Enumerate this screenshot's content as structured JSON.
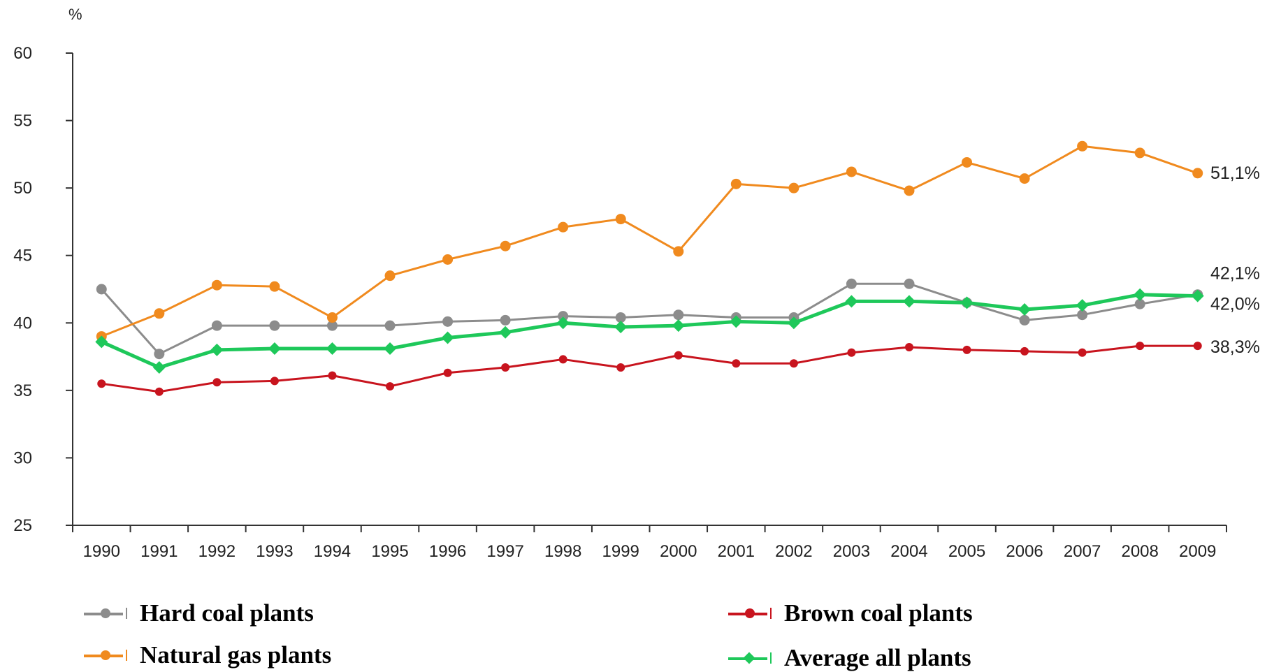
{
  "chart_data": {
    "type": "line",
    "unit_label": "%",
    "x": [
      "1990",
      "1991",
      "1992",
      "1993",
      "1994",
      "1995",
      "1996",
      "1997",
      "1998",
      "1999",
      "2000",
      "2001",
      "2002",
      "2003",
      "2004",
      "2005",
      "2006",
      "2007",
      "2008",
      "2009"
    ],
    "ylim": [
      25,
      60
    ],
    "yticks": [
      25,
      30,
      35,
      40,
      45,
      50,
      55,
      60
    ],
    "grid": false,
    "legend_position": "bottom",
    "series": [
      {
        "key": "hard",
        "name": "Hard coal plants",
        "color": "#8c8c8c",
        "marker": "circle",
        "values": [
          42.5,
          37.7,
          39.8,
          39.8,
          39.8,
          39.8,
          40.1,
          40.2,
          40.5,
          40.4,
          40.6,
          40.4,
          40.4,
          42.9,
          42.9,
          41.5,
          40.2,
          40.6,
          41.4,
          42.1
        ],
        "end_label": "42,1%"
      },
      {
        "key": "gas",
        "name": "Natural gas plants",
        "color": "#f08a1e",
        "marker": "circle",
        "values": [
          39.0,
          40.7,
          42.8,
          42.7,
          40.4,
          43.5,
          44.7,
          45.7,
          47.1,
          47.7,
          45.3,
          50.3,
          50.0,
          51.2,
          49.8,
          51.9,
          50.7,
          53.1,
          52.6,
          51.1
        ],
        "end_label": "51,1%"
      },
      {
        "key": "brown",
        "name": "Brown coal plants",
        "color": "#c8141e",
        "marker": "circle",
        "values": [
          35.5,
          34.9,
          35.6,
          35.7,
          36.1,
          35.3,
          36.3,
          36.7,
          37.3,
          36.7,
          37.6,
          37.0,
          37.0,
          37.8,
          38.2,
          38.0,
          37.9,
          37.8,
          38.3,
          38.3
        ],
        "end_label": "38,3%"
      },
      {
        "key": "avg",
        "name": "Average all plants",
        "color": "#1ec85a",
        "marker": "diamond",
        "values": [
          38.6,
          36.7,
          38.0,
          38.1,
          38.1,
          38.1,
          38.9,
          39.3,
          40.0,
          39.7,
          39.8,
          40.1,
          40.0,
          41.6,
          41.6,
          41.5,
          41.0,
          41.3,
          42.1,
          42.0
        ],
        "end_label": "42,0%"
      }
    ]
  }
}
